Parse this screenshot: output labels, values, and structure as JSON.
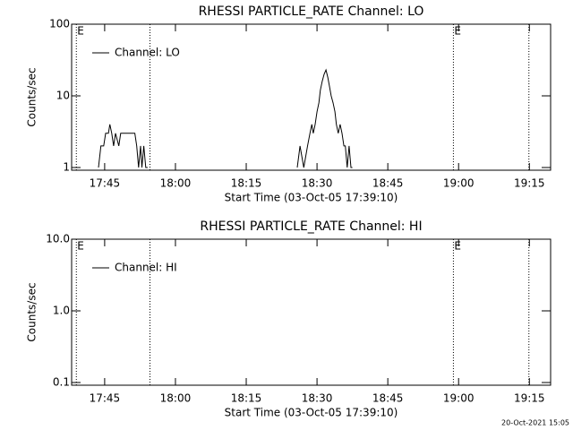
{
  "chart_data": [
    {
      "type": "line",
      "title": "RHESSI PARTICLE_RATE Channel: LO",
      "xlabel": "Start Time (03-Oct-05 17:39:10)",
      "ylabel": "Counts/sec",
      "log_y": true,
      "xlim": [
        1058,
        1159.5
      ],
      "ylim": [
        0.917,
        100
      ],
      "xticks": [
        {
          "value": 1065,
          "label": "17:45"
        },
        {
          "value": 1080,
          "label": "18:00"
        },
        {
          "value": 1095,
          "label": "18:15"
        },
        {
          "value": 1110,
          "label": "18:30"
        },
        {
          "value": 1125,
          "label": "18:45"
        },
        {
          "value": 1140,
          "label": "19:00"
        },
        {
          "value": 1155,
          "label": "19:15"
        }
      ],
      "yticks": [
        1,
        10,
        100
      ],
      "legend": "upper left",
      "vlines": [
        {
          "x": 1059,
          "label": "E"
        },
        {
          "x": 1074.6
        },
        {
          "x": 1138.9,
          "label": "E"
        },
        {
          "x": 1154.9
        }
      ],
      "series": [
        {
          "name": "Channel: LO",
          "color": "#000000",
          "x": [
            1063.7,
            1064.2,
            1064.8,
            1065.2,
            1065.8,
            1066.1,
            1066.5,
            1066.9,
            1067.3,
            1068.0,
            1068.4,
            1071.4,
            1071.8,
            1072.2,
            1072.6,
            1072.9,
            1073.3,
            1073.7,
            1074.1,
            1090,
            1105.8,
            1106.4,
            1107.2,
            1108.0,
            1108.5,
            1108.9,
            1109.2,
            1109.6,
            1110.0,
            1110.4,
            1110.7,
            1111.1,
            1111.5,
            1111.9,
            1112.3,
            1112.6,
            1113.0,
            1113.4,
            1113.8,
            1114.1,
            1114.5,
            1114.9,
            1115.3,
            1115.7,
            1116.0,
            1116.4,
            1116.8,
            1117.2,
            1117.5
          ],
          "values": [
            1,
            2,
            2,
            3,
            3,
            4,
            3,
            2,
            3,
            2,
            3,
            3,
            2,
            1,
            2,
            1,
            2,
            1,
            1,
            null,
            1,
            2,
            1,
            2,
            3,
            4,
            3,
            4,
            6,
            8,
            12,
            16,
            20,
            23,
            18,
            14,
            10,
            8,
            6,
            4,
            3,
            4,
            3,
            2,
            2,
            1,
            2,
            1,
            1
          ]
        }
      ]
    },
    {
      "type": "line",
      "title": "RHESSI PARTICLE_RATE Channel: HI",
      "xlabel": "Start Time (03-Oct-05 17:39:10)",
      "ylabel": "Counts/sec",
      "log_y": true,
      "xlim": [
        1058,
        1159.5
      ],
      "ylim": [
        0.0917,
        10
      ],
      "xticks": [
        {
          "value": 1065,
          "label": "17:45"
        },
        {
          "value": 1080,
          "label": "18:00"
        },
        {
          "value": 1095,
          "label": "18:15"
        },
        {
          "value": 1110,
          "label": "18:30"
        },
        {
          "value": 1125,
          "label": "18:45"
        },
        {
          "value": 1140,
          "label": "19:00"
        },
        {
          "value": 1155,
          "label": "19:15"
        }
      ],
      "yticks": [
        0.1,
        {
          "value": 1,
          "label": "1.0"
        },
        {
          "value": 10,
          "label": "10.0"
        }
      ],
      "legend": "upper left",
      "vlines": [
        {
          "x": 1059,
          "label": "E"
        },
        {
          "x": 1074.6
        },
        {
          "x": 1138.9,
          "label": "E"
        },
        {
          "x": 1154.9
        }
      ],
      "series": [
        {
          "name": "Channel: HI",
          "color": "#000000",
          "x": [],
          "values": []
        }
      ]
    }
  ],
  "footer": "20-Oct-2021 15:05"
}
